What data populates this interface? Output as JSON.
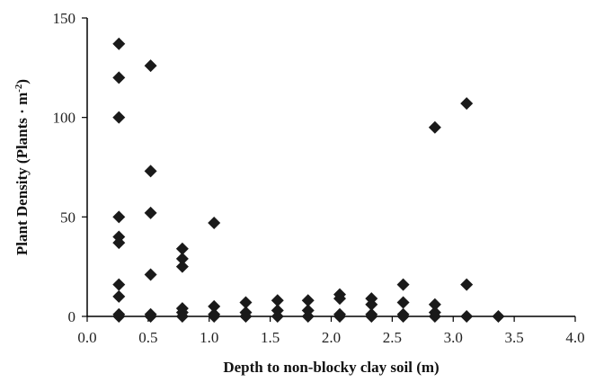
{
  "chart_data": {
    "type": "scatter",
    "xlabel": "Depth to non-blocky clay soil (m)",
    "ylabel": {
      "text": "Plant Density (Plants · m",
      "sup": "-2",
      "close": ")"
    },
    "xlim": [
      0,
      4.0
    ],
    "ylim": [
      0,
      150
    ],
    "x_ticks": [
      "0.0",
      "0.5",
      "1.0",
      "1.5",
      "2.0",
      "2.5",
      "3.0",
      "3.5",
      "4.0"
    ],
    "x_tick_values": [
      0,
      0.5,
      1.0,
      1.5,
      2.0,
      2.5,
      3.0,
      3.5,
      4.0
    ],
    "y_ticks": [
      "0",
      "50",
      "100",
      "150"
    ],
    "y_tick_values": [
      0,
      50,
      100,
      150
    ],
    "grid": false,
    "legend": "none",
    "marker": "diamond",
    "marker_color": "#1a1a1a",
    "points": [
      {
        "x": 0.26,
        "y": 137
      },
      {
        "x": 0.26,
        "y": 120
      },
      {
        "x": 0.26,
        "y": 100
      },
      {
        "x": 0.26,
        "y": 50
      },
      {
        "x": 0.26,
        "y": 40
      },
      {
        "x": 0.26,
        "y": 37
      },
      {
        "x": 0.26,
        "y": 16
      },
      {
        "x": 0.26,
        "y": 10
      },
      {
        "x": 0.26,
        "y": 1
      },
      {
        "x": 0.26,
        "y": 0
      },
      {
        "x": 0.52,
        "y": 126
      },
      {
        "x": 0.52,
        "y": 73
      },
      {
        "x": 0.52,
        "y": 52
      },
      {
        "x": 0.52,
        "y": 21
      },
      {
        "x": 0.52,
        "y": 1
      },
      {
        "x": 0.52,
        "y": 0
      },
      {
        "x": 0.78,
        "y": 34
      },
      {
        "x": 0.78,
        "y": 29
      },
      {
        "x": 0.78,
        "y": 25
      },
      {
        "x": 0.78,
        "y": 4
      },
      {
        "x": 0.78,
        "y": 2
      },
      {
        "x": 0.78,
        "y": 0
      },
      {
        "x": 1.04,
        "y": 47
      },
      {
        "x": 1.04,
        "y": 5
      },
      {
        "x": 1.04,
        "y": 1
      },
      {
        "x": 1.04,
        "y": 0
      },
      {
        "x": 1.3,
        "y": 7
      },
      {
        "x": 1.3,
        "y": 2
      },
      {
        "x": 1.3,
        "y": 0
      },
      {
        "x": 1.56,
        "y": 8
      },
      {
        "x": 1.56,
        "y": 3
      },
      {
        "x": 1.56,
        "y": 0
      },
      {
        "x": 1.81,
        "y": 8
      },
      {
        "x": 1.81,
        "y": 3
      },
      {
        "x": 1.81,
        "y": 0
      },
      {
        "x": 2.07,
        "y": 11
      },
      {
        "x": 2.07,
        "y": 9
      },
      {
        "x": 2.07,
        "y": 1
      },
      {
        "x": 2.07,
        "y": 0
      },
      {
        "x": 2.33,
        "y": 9
      },
      {
        "x": 2.33,
        "y": 6
      },
      {
        "x": 2.33,
        "y": 1
      },
      {
        "x": 2.33,
        "y": 0
      },
      {
        "x": 2.59,
        "y": 16
      },
      {
        "x": 2.59,
        "y": 7
      },
      {
        "x": 2.59,
        "y": 1
      },
      {
        "x": 2.59,
        "y": 0
      },
      {
        "x": 2.85,
        "y": 95
      },
      {
        "x": 2.85,
        "y": 6
      },
      {
        "x": 2.85,
        "y": 2
      },
      {
        "x": 2.85,
        "y": 0
      },
      {
        "x": 3.11,
        "y": 107
      },
      {
        "x": 3.11,
        "y": 16
      },
      {
        "x": 3.11,
        "y": 0
      },
      {
        "x": 3.37,
        "y": 0
      }
    ]
  }
}
